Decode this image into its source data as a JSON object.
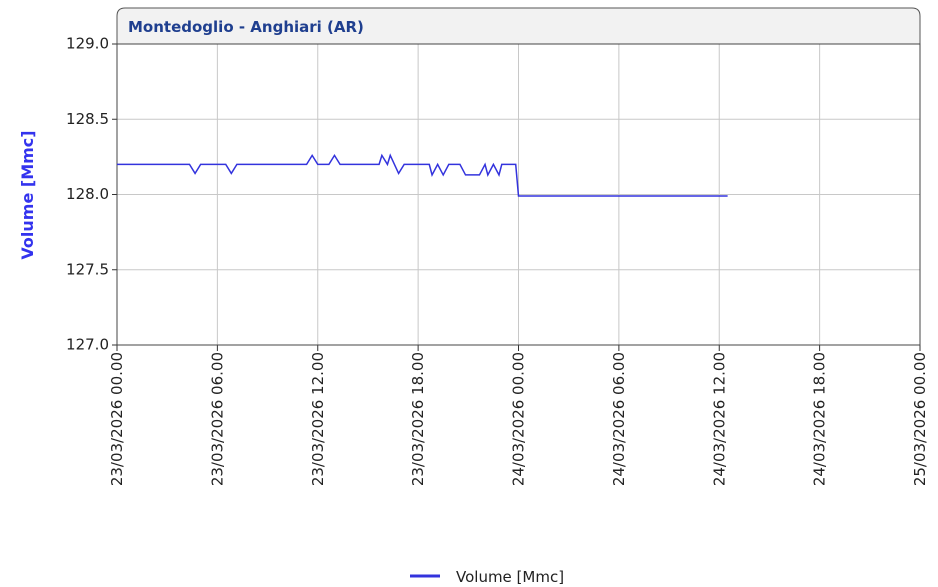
{
  "chart_data": {
    "type": "line",
    "title": "Montedoglio - Anghiari  (AR)",
    "y_label": "Volume [Mmc]",
    "xlim": [
      "2026-03-23T00:00",
      "2026-03-25T00:00"
    ],
    "xticks": [
      {
        "value": "2026-03-23T00:00",
        "label": "23/03/2026 00.00"
      },
      {
        "value": "2026-03-23T06:00",
        "label": "23/03/2026 06.00"
      },
      {
        "value": "2026-03-23T12:00",
        "label": "23/03/2026 12.00"
      },
      {
        "value": "2026-03-23T18:00",
        "label": "23/03/2026 18.00"
      },
      {
        "value": "2026-03-24T00:00",
        "label": "24/03/2026 00.00"
      },
      {
        "value": "2026-03-24T06:00",
        "label": "24/03/2026 06.00"
      },
      {
        "value": "2026-03-24T12:00",
        "label": "24/03/2026 12.00"
      },
      {
        "value": "2026-03-24T18:00",
        "label": "24/03/2026 18.00"
      },
      {
        "value": "2026-03-25T00:00",
        "label": "25/03/2026 00.00"
      }
    ],
    "ylim": [
      127.0,
      129.0
    ],
    "yticks": [
      {
        "value": 127.0,
        "label": "127.0"
      },
      {
        "value": 127.5,
        "label": "127.5"
      },
      {
        "value": 128.0,
        "label": "128.0"
      },
      {
        "value": 128.5,
        "label": "128.5"
      },
      {
        "value": 129.0,
        "label": "129.0"
      }
    ],
    "grid": true,
    "legend": "bottom",
    "x": [
      "2026-03-23T00:00",
      "2026-03-23T04:20",
      "2026-03-23T04:40",
      "2026-03-23T05:00",
      "2026-03-23T06:30",
      "2026-03-23T06:50",
      "2026-03-23T07:10",
      "2026-03-23T11:20",
      "2026-03-23T11:40",
      "2026-03-23T12:00",
      "2026-03-23T12:40",
      "2026-03-23T13:00",
      "2026-03-23T13:20",
      "2026-03-23T15:40",
      "2026-03-23T15:50",
      "2026-03-23T16:10",
      "2026-03-23T16:20",
      "2026-03-23T16:50",
      "2026-03-23T17:10",
      "2026-03-23T18:40",
      "2026-03-23T18:50",
      "2026-03-23T19:10",
      "2026-03-23T19:30",
      "2026-03-23T19:50",
      "2026-03-23T20:30",
      "2026-03-23T20:50",
      "2026-03-23T21:40",
      "2026-03-23T22:00",
      "2026-03-23T22:10",
      "2026-03-23T22:30",
      "2026-03-23T22:50",
      "2026-03-23T23:00",
      "2026-03-23T23:50",
      "2026-03-24T00:00",
      "2026-03-24T12:30"
    ],
    "series": [
      {
        "name": "Volume [Mmc]",
        "color": "#3333dd",
        "values": [
          128.2,
          128.2,
          128.14,
          128.2,
          128.2,
          128.14,
          128.2,
          128.2,
          128.26,
          128.2,
          128.2,
          128.26,
          128.2,
          128.2,
          128.26,
          128.2,
          128.26,
          128.14,
          128.2,
          128.2,
          128.13,
          128.2,
          128.13,
          128.2,
          128.2,
          128.13,
          128.13,
          128.2,
          128.13,
          128.2,
          128.13,
          128.2,
          128.2,
          127.99,
          127.99
        ]
      }
    ]
  }
}
